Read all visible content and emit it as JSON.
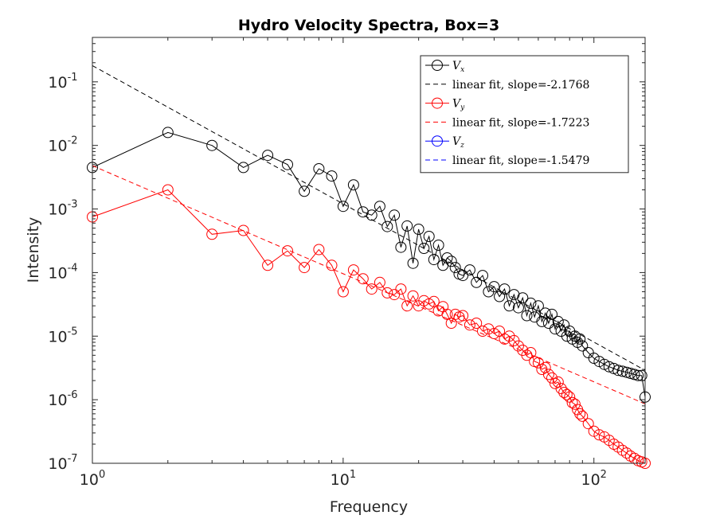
{
  "chart_data": {
    "type": "line",
    "title": "Hydro Velocity Spectra, Box=3",
    "xlabel": "Frequency",
    "ylabel": "Intensity",
    "xscale": "log",
    "yscale": "log",
    "xlim": [
      1,
      160
    ],
    "ylim": [
      1e-07,
      0.5
    ],
    "grid": false,
    "legend_position": "top-right",
    "x_ticks": [
      {
        "base": "10",
        "exp": "0",
        "value": 1
      },
      {
        "base": "10",
        "exp": "1",
        "value": 10
      },
      {
        "base": "10",
        "exp": "2",
        "value": 100
      }
    ],
    "y_ticks": [
      {
        "base": "10",
        "exp": "-7",
        "value": 1e-07
      },
      {
        "base": "10",
        "exp": "-6",
        "value": 1e-06
      },
      {
        "base": "10",
        "exp": "-5",
        "value": 1e-05
      },
      {
        "base": "10",
        "exp": "-4",
        "value": 0.0001
      },
      {
        "base": "10",
        "exp": "-3",
        "value": 0.001
      },
      {
        "base": "10",
        "exp": "-2",
        "value": 0.01
      },
      {
        "base": "10",
        "exp": "-1",
        "value": 0.1
      }
    ],
    "series": [
      {
        "name": "Vx",
        "legend_main": "V",
        "legend_sub": "x",
        "color": "#000000",
        "marker": "circle",
        "x": [
          1,
          2,
          3,
          4,
          5,
          6,
          7,
          8,
          9,
          10,
          11,
          12,
          13,
          14,
          15,
          16,
          17,
          18,
          19,
          20,
          21,
          22,
          23,
          24,
          25,
          26,
          27,
          28,
          29,
          30,
          32,
          34,
          36,
          38,
          40,
          42,
          44,
          46,
          48,
          50,
          52,
          54,
          56,
          58,
          60,
          62,
          64,
          66,
          68,
          70,
          72,
          74,
          76,
          78,
          80,
          82,
          84,
          86,
          88,
          90,
          95,
          100,
          105,
          110,
          115,
          120,
          125,
          130,
          135,
          140,
          145,
          150,
          155,
          160
        ],
        "y": [
          0.0045,
          0.016,
          0.01,
          0.0045,
          0.007,
          0.005,
          0.0019,
          0.0043,
          0.0033,
          0.0011,
          0.0024,
          0.0009,
          0.0008,
          0.0011,
          0.00053,
          0.0008,
          0.00025,
          0.00054,
          0.00014,
          0.00048,
          0.00024,
          0.00037,
          0.00016,
          0.00027,
          0.00013,
          0.00017,
          0.00015,
          0.00012,
          9.5e-05,
          9e-05,
          0.00011,
          7e-05,
          9e-05,
          5e-05,
          6e-05,
          4.2e-05,
          5.5e-05,
          3e-05,
          4.5e-05,
          2.8e-05,
          4e-05,
          2.1e-05,
          3.3e-05,
          2e-05,
          3e-05,
          1.7e-05,
          2.3e-05,
          1.6e-05,
          2.2e-05,
          1.3e-05,
          1.7e-05,
          1.2e-05,
          1.5e-05,
          1e-05,
          1.2e-05,
          9e-06,
          1e-05,
          8e-06,
          9e-06,
          7e-06,
          5.5e-06,
          4.5e-06,
          4e-06,
          3.6e-06,
          3.3e-06,
          3.1e-06,
          2.9e-06,
          2.8e-06,
          2.7e-06,
          2.6e-06,
          2.5e-06,
          2.4e-06,
          2.4e-06,
          1.1e-06
        ]
      },
      {
        "name": "linear fit, slope=-2.1768",
        "legend_main": "linear fit, slope=-2.1768",
        "color": "#000000",
        "style": "dashed",
        "slope": -2.1768,
        "x": [
          1,
          160
        ],
        "y": [
          0.18,
          2.9e-06
        ]
      },
      {
        "name": "Vy",
        "legend_main": "V",
        "legend_sub": "y",
        "color": "#ff0000",
        "marker": "circle",
        "x": [
          1,
          2,
          3,
          4,
          5,
          6,
          7,
          8,
          9,
          10,
          11,
          12,
          13,
          14,
          15,
          16,
          17,
          18,
          19,
          20,
          21,
          22,
          23,
          24,
          25,
          26,
          27,
          28,
          29,
          30,
          32,
          34,
          36,
          38,
          40,
          42,
          44,
          46,
          48,
          50,
          52,
          54,
          56,
          58,
          60,
          62,
          64,
          66,
          68,
          70,
          72,
          74,
          76,
          78,
          80,
          82,
          84,
          86,
          88,
          90,
          95,
          100,
          105,
          110,
          115,
          120,
          125,
          130,
          135,
          140,
          145,
          150,
          155,
          160
        ],
        "y": [
          0.00075,
          0.002,
          0.0004,
          0.00046,
          0.00013,
          0.00022,
          0.00012,
          0.00023,
          0.00013,
          5e-05,
          0.00011,
          8e-05,
          5.5e-05,
          7e-05,
          4.8e-05,
          4.5e-05,
          5.5e-05,
          3e-05,
          4.3e-05,
          3e-05,
          3.6e-05,
          3.2e-05,
          3.5e-05,
          2.5e-05,
          2.9e-05,
          2.2e-05,
          1.6e-05,
          2.2e-05,
          2e-05,
          2.1e-05,
          1.5e-05,
          1.6e-05,
          1.2e-05,
          1.3e-05,
          1.1e-05,
          1.2e-05,
          9e-06,
          1e-05,
          8.5e-06,
          7e-06,
          6e-06,
          5e-06,
          5.5e-06,
          4e-06,
          3.8e-06,
          3e-06,
          3.2e-06,
          2.5e-06,
          2.2e-06,
          1.8e-06,
          1.9e-06,
          1.5e-06,
          1.3e-06,
          1.2e-06,
          1.1e-06,
          9e-07,
          8.5e-07,
          7e-07,
          6e-07,
          5.5e-07,
          4.2e-07,
          3.2e-07,
          2.8e-07,
          2.6e-07,
          2.3e-07,
          2e-07,
          1.8e-07,
          1.6e-07,
          1.45e-07,
          1.3e-07,
          1.2e-07,
          1.1e-07,
          1.05e-07,
          1e-07
        ]
      },
      {
        "name": "linear fit, slope=-1.7223",
        "legend_main": "linear fit, slope=-1.7223",
        "color": "#ff0000",
        "style": "dashed",
        "slope": -1.7223,
        "x": [
          1,
          160
        ],
        "y": [
          0.0048,
          8.6e-07
        ]
      },
      {
        "name": "Vz",
        "legend_main": "V",
        "legend_sub": "z",
        "color": "#0000ff",
        "marker": "circle",
        "x": [],
        "y": []
      },
      {
        "name": "linear fit, slope=-1.5479",
        "legend_main": "linear fit, slope=-1.5479",
        "color": "#0000ff",
        "style": "dashed",
        "slope": -1.5479,
        "x": [],
        "y": []
      }
    ]
  }
}
